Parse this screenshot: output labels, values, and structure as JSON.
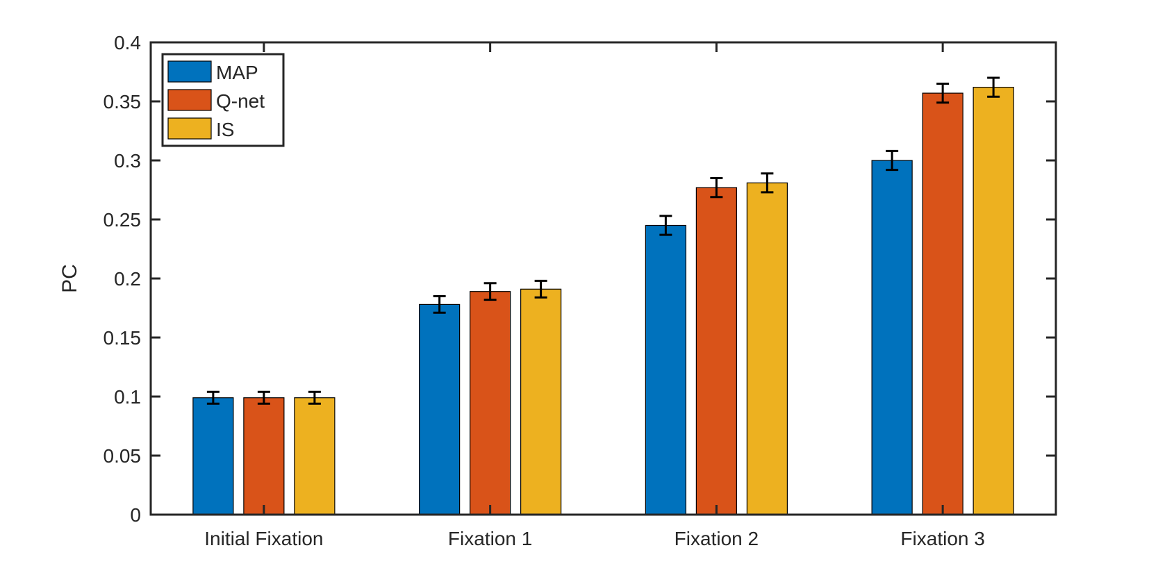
{
  "chart_data": {
    "type": "bar",
    "title": "",
    "xlabel": "",
    "ylabel": "PC",
    "categories": [
      "Initial Fixation",
      "Fixation 1",
      "Fixation 2",
      "Fixation 3"
    ],
    "series": [
      {
        "name": "MAP",
        "color": "#0072BD",
        "values": [
          0.099,
          0.178,
          0.245,
          0.3
        ],
        "errors": [
          0.005,
          0.007,
          0.008,
          0.008
        ]
      },
      {
        "name": "Q-net",
        "color": "#D95319",
        "values": [
          0.099,
          0.189,
          0.277,
          0.357
        ],
        "errors": [
          0.005,
          0.007,
          0.008,
          0.008
        ]
      },
      {
        "name": "IS",
        "color": "#EDB120",
        "values": [
          0.099,
          0.191,
          0.281,
          0.362
        ],
        "errors": [
          0.005,
          0.007,
          0.008,
          0.008
        ]
      }
    ],
    "ylim": [
      0,
      0.4
    ],
    "yticks": [
      "0",
      "0.05",
      "0.1",
      "0.15",
      "0.2",
      "0.25",
      "0.3",
      "0.35",
      "0.4"
    ],
    "grid": false,
    "legend_position": "top-left"
  }
}
